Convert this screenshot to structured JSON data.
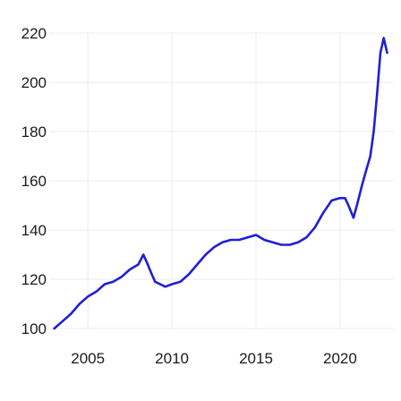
{
  "chart_data": {
    "type": "line",
    "title": "",
    "xlabel": "",
    "ylabel": "",
    "xlim": [
      2002.7,
      2023.2
    ],
    "ylim": [
      100,
      220
    ],
    "x_ticks": [
      2005,
      2010,
      2015,
      2020
    ],
    "y_ticks": [
      100,
      120,
      140,
      160,
      180,
      200,
      220
    ],
    "grid": true,
    "legend": "none",
    "color": "#1f1fd6",
    "series": [
      {
        "x": [
          2003.0,
          2003.5,
          2004.0,
          2004.5,
          2005.0,
          2005.5,
          2006.0,
          2006.5,
          2007.0,
          2007.5,
          2008.0,
          2008.3,
          2008.5,
          2008.8,
          2009.0,
          2009.3,
          2009.6,
          2010.0,
          2010.5,
          2011.0,
          2011.5,
          2012.0,
          2012.5,
          2013.0,
          2013.5,
          2014.0,
          2014.5,
          2015.0,
          2015.5,
          2016.0,
          2016.5,
          2017.0,
          2017.5,
          2018.0,
          2018.5,
          2019.0,
          2019.5,
          2020.0,
          2020.3,
          2020.5,
          2020.8,
          2021.0,
          2021.3,
          2021.5,
          2021.8,
          2022.0,
          2022.2,
          2022.4,
          2022.6,
          2022.8
        ],
        "values": [
          100,
          103,
          106,
          110,
          113,
          115,
          118,
          119,
          121,
          124,
          126,
          130,
          127,
          122,
          119,
          118,
          117,
          118,
          119,
          122,
          126,
          130,
          133,
          135,
          136,
          136,
          137,
          138,
          136,
          135,
          134,
          134,
          135,
          137,
          141,
          147,
          152,
          153,
          153,
          150,
          145,
          150,
          158,
          163,
          170,
          180,
          195,
          212,
          218,
          212
        ]
      }
    ]
  }
}
